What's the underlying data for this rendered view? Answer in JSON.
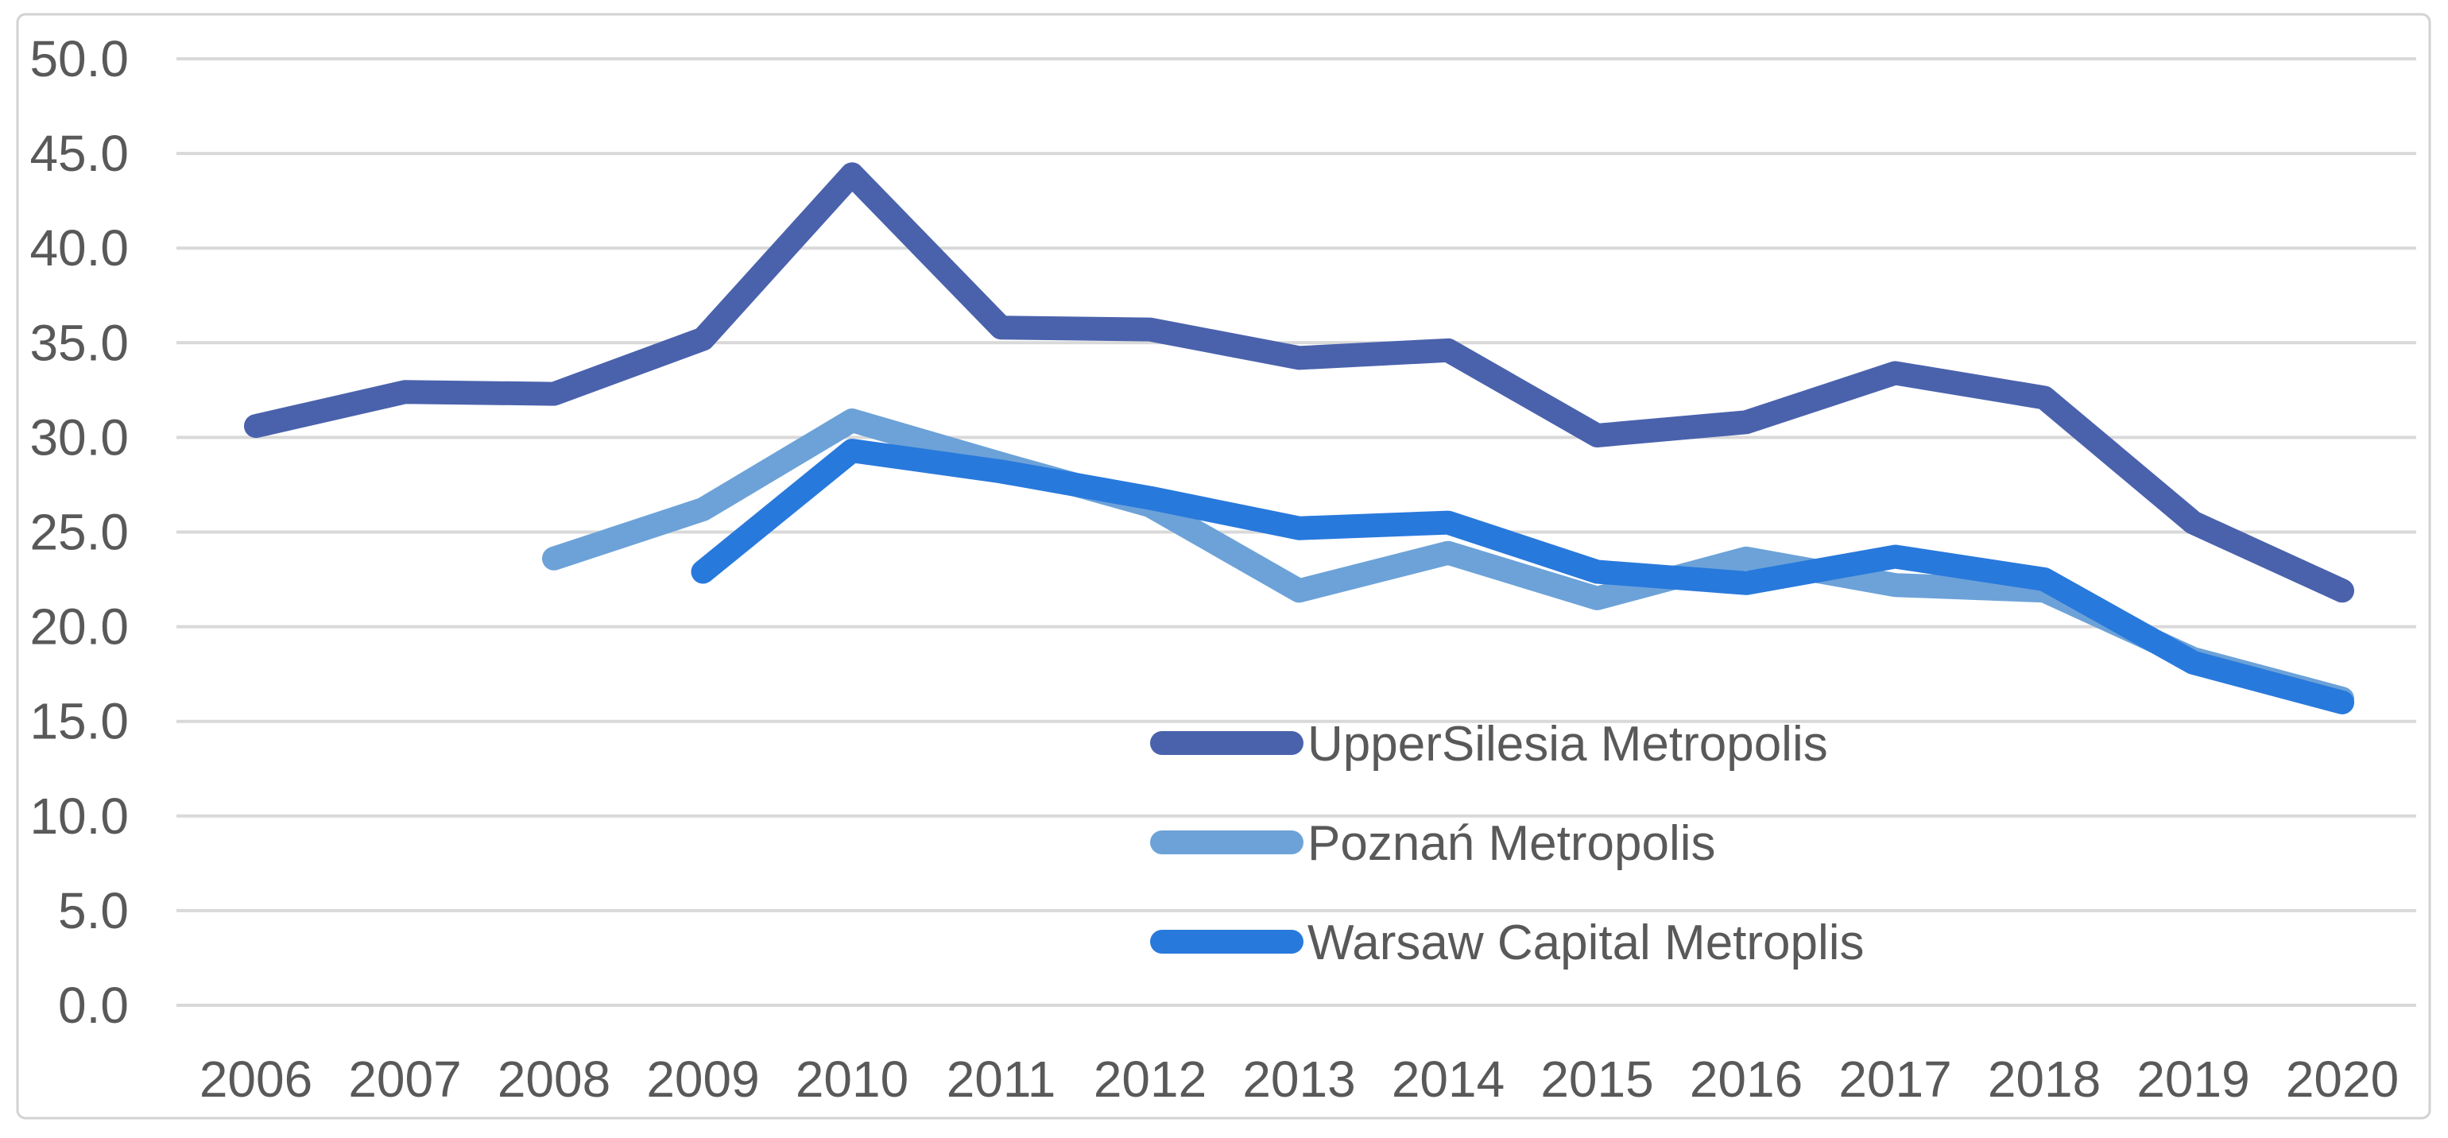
{
  "chart_data": {
    "type": "line",
    "title": "",
    "xlabel": "",
    "ylabel": "",
    "x_categories": [
      "2006",
      "2007",
      "2008",
      "2009",
      "2010",
      "2011",
      "2012",
      "2013",
      "2014",
      "2015",
      "2016",
      "2017",
      "2018",
      "2019",
      "2020"
    ],
    "series": [
      {
        "name": "UpperSilesia Metropolis",
        "color": "#4A62AC",
        "values": [
          30.6,
          32.4,
          32.3,
          35.2,
          43.9,
          35.8,
          35.7,
          34.2,
          34.6,
          30.1,
          30.8,
          33.4,
          32.1,
          25.5,
          21.9
        ]
      },
      {
        "name": "Poznań Metropolis",
        "color": "#6CA2D8",
        "values": [
          null,
          null,
          23.6,
          26.2,
          30.9,
          28.6,
          26.4,
          21.9,
          23.9,
          21.5,
          23.6,
          22.2,
          21.9,
          18.3,
          16.2
        ]
      },
      {
        "name": "Warsaw Capital Metroplis",
        "color": "#2879DC",
        "values": [
          null,
          null,
          null,
          22.9,
          29.3,
          28.2,
          26.8,
          25.2,
          25.5,
          22.9,
          22.3,
          23.7,
          22.5,
          18.1,
          16.0
        ]
      }
    ],
    "ylim": [
      0,
      50
    ],
    "ytick_step": 5,
    "ytick_decimals": 1,
    "grid": true,
    "legend_position": "inside-plot-lower-middle"
  },
  "styles": {
    "background": "#FFFFFF",
    "grid_color": "#D9D9D9",
    "border_color": "#D2D2D2",
    "axis_text_color": "#595959",
    "legend_text_color": "#595959"
  }
}
